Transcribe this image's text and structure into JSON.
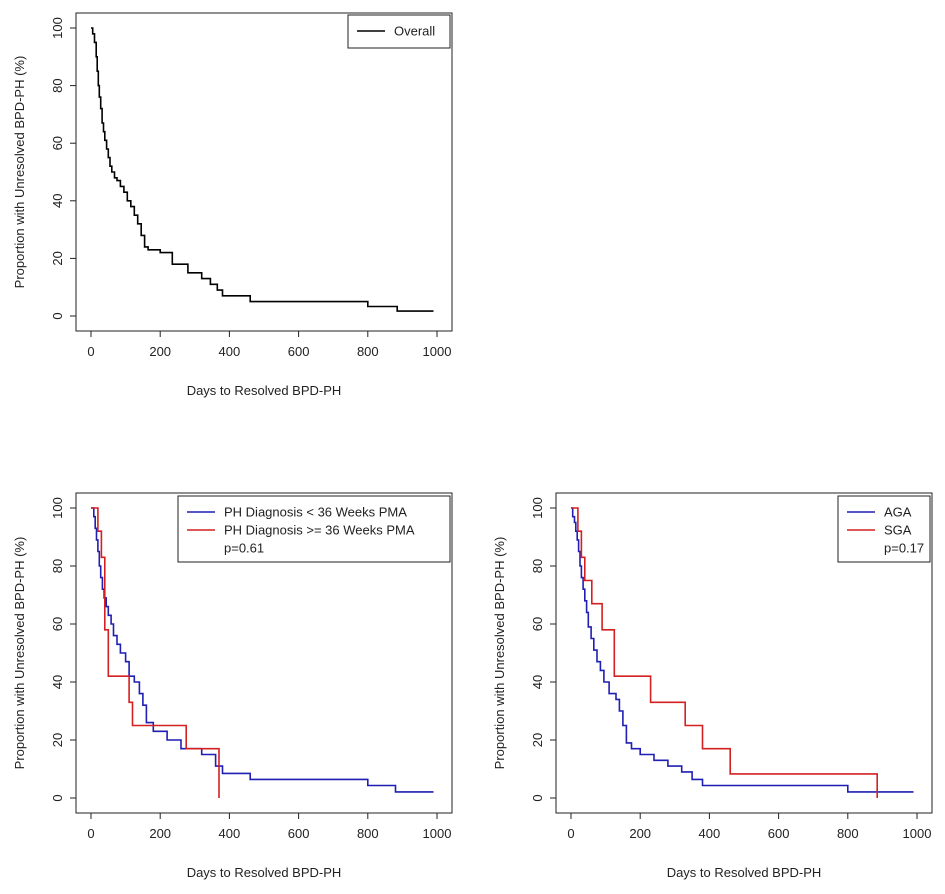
{
  "figure": {
    "description_label": "Kaplan-Meier curves of time to resolved BPD-PH"
  },
  "chart_data": [
    {
      "type": "line",
      "step": true,
      "xlabel": "Days to Resolved BPD-PH",
      "ylabel": "Proportion with Unresolved BPD-PH (%)",
      "xlim": [
        0,
        1000
      ],
      "ylim": [
        0,
        100
      ],
      "xticks": [
        0,
        200,
        400,
        600,
        800,
        1000
      ],
      "yticks": [
        0,
        20,
        40,
        60,
        80,
        100
      ],
      "legend": {
        "position": "top-right",
        "p_value": ""
      },
      "series": [
        {
          "name": "Overall",
          "color": "#000000",
          "x": [
            0,
            5,
            10,
            15,
            18,
            21,
            24,
            28,
            32,
            36,
            40,
            45,
            50,
            55,
            60,
            68,
            75,
            85,
            95,
            105,
            115,
            125,
            135,
            145,
            155,
            165,
            200,
            235,
            280,
            320,
            345,
            365,
            380,
            460,
            800,
            885,
            990
          ],
          "y": [
            100,
            98,
            95,
            90,
            85,
            80,
            76,
            72,
            67,
            64,
            61,
            58,
            55,
            52,
            50,
            48,
            47,
            45,
            43,
            40,
            38,
            35,
            32,
            28,
            24,
            23,
            22,
            18,
            15,
            13,
            11,
            9,
            7,
            5,
            3.3,
            1.7,
            1.7
          ]
        }
      ]
    },
    {
      "type": "line",
      "step": true,
      "xlabel": "Days to Resolved BPD-PH",
      "ylabel": "Proportion with Unresolved BPD-PH (%)",
      "xlim": [
        0,
        1000
      ],
      "ylim": [
        0,
        100
      ],
      "xticks": [
        0,
        200,
        400,
        600,
        800,
        1000
      ],
      "yticks": [
        0,
        20,
        40,
        60,
        80,
        100
      ],
      "legend": {
        "position": "top-right",
        "p_value": "p=0.61"
      },
      "series": [
        {
          "name": "PH Diagnosis < 36 Weeks PMA",
          "color": "#1f1fb4",
          "x": [
            0,
            8,
            12,
            16,
            20,
            24,
            28,
            33,
            38,
            44,
            50,
            58,
            65,
            75,
            85,
            100,
            110,
            125,
            140,
            150,
            160,
            180,
            220,
            260,
            320,
            360,
            380,
            460,
            800,
            880,
            990
          ],
          "y": [
            100,
            97,
            93,
            89,
            85,
            80,
            76,
            72,
            69,
            66,
            63,
            60,
            56,
            53,
            50,
            47,
            42,
            40,
            36,
            32,
            26,
            23,
            20,
            17,
            15,
            11,
            8.5,
            6.4,
            4.3,
            2.1,
            2.1
          ]
        },
        {
          "name": "PH Diagnosis >= 36 Weeks PMA",
          "color": "#d42020",
          "x": [
            0,
            20,
            30,
            40,
            50,
            110,
            120,
            275,
            370,
            370
          ],
          "y": [
            100,
            92,
            83,
            58,
            42,
            33,
            25,
            17,
            8,
            0
          ]
        }
      ]
    },
    {
      "type": "line",
      "step": true,
      "xlabel": "Days to Resolved BPD-PH",
      "ylabel": "Proportion with Unresolved BPD-PH (%)",
      "xlim": [
        0,
        1000
      ],
      "ylim": [
        0,
        100
      ],
      "xticks": [
        0,
        200,
        400,
        600,
        800,
        1000
      ],
      "yticks": [
        0,
        20,
        40,
        60,
        80,
        100
      ],
      "legend": {
        "position": "top-right",
        "p_value": "p=0.17"
      },
      "series": [
        {
          "name": "AGA",
          "color": "#1f1fb4",
          "x": [
            0,
            5,
            10,
            14,
            18,
            22,
            26,
            30,
            35,
            40,
            45,
            50,
            58,
            66,
            75,
            85,
            95,
            110,
            130,
            140,
            150,
            160,
            175,
            200,
            240,
            280,
            320,
            350,
            380,
            800,
            990
          ],
          "y": [
            100,
            97,
            95,
            92,
            89,
            85,
            80,
            76,
            72,
            68,
            64,
            59,
            55,
            51,
            47,
            44,
            40,
            36,
            34,
            30,
            25,
            19,
            17,
            15,
            13,
            11,
            9,
            6.4,
            4.3,
            2.1,
            2.1
          ]
        },
        {
          "name": "SGA",
          "color": "#d42020",
          "x": [
            0,
            20,
            30,
            40,
            60,
            90,
            125,
            230,
            330,
            380,
            460,
            885,
            885
          ],
          "y": [
            100,
            92,
            83,
            75,
            67,
            58,
            42,
            33,
            25,
            17,
            8.3,
            8.3,
            0
          ]
        }
      ]
    }
  ]
}
